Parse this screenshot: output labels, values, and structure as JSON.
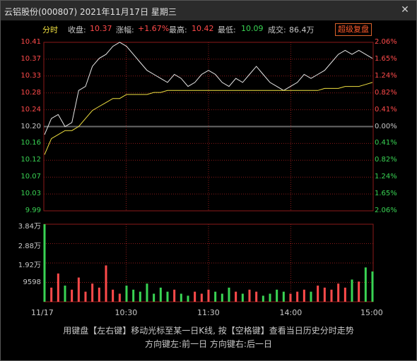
{
  "window": {
    "title": "云铝股份(000807) 2021年11月17日 星期三",
    "close_glyph": "✕"
  },
  "info": {
    "tab": "分时",
    "close_label": "收盘:",
    "close_value": "10.37",
    "change_label": "涨幅:",
    "change_value": "+1.67%",
    "high_label": "最高:",
    "high_value": "10.42",
    "low_label": "最低:",
    "low_value": "10.09",
    "volume_label": "成交:",
    "volume_value": "86.4万",
    "button": "超级复盘"
  },
  "price_axis": {
    "left": [
      "10.41",
      "10.37",
      "10.33",
      "10.28",
      "10.24",
      "10.20",
      "10.16",
      "10.12",
      "10.07",
      "10.03",
      "9.99"
    ],
    "right": [
      "2.06%",
      "1.65%",
      "1.24%",
      "0.82%",
      "0.41%",
      "0.00%",
      "0.41%",
      "0.82%",
      "1.24%",
      "1.65%",
      "2.06%"
    ]
  },
  "volume_axis": {
    "labels": [
      "3.84万",
      "2.88万",
      "1.92万",
      "9598"
    ]
  },
  "time_axis": [
    "11/17",
    "10:30",
    "11:30",
    "14:00",
    "15:00"
  ],
  "footer": {
    "line1": "用键盘【左右键】移动光标至某一日K线, 按【空格键】查看当日历史分时走势",
    "line2": "方向键左:前一日  方向键右:后一日"
  },
  "colors": {
    "up": "#ff4a4a",
    "down": "#39d353",
    "price_line": "#e8e8e8",
    "avg_line": "#f0e040",
    "grid": "#8b1a1a"
  },
  "chart_data": {
    "type": "line",
    "title": "",
    "ylim": [
      9.99,
      10.41
    ],
    "prev_close": 10.2,
    "x_ticks": [
      "09:30",
      "10:30",
      "11:30",
      "14:00",
      "15:00"
    ],
    "series": [
      {
        "x": [
          "09:30",
          "09:35",
          "09:40",
          "09:45",
          "09:50",
          "09:55",
          "10:00",
          "10:05",
          "10:10",
          "10:15",
          "10:20",
          "10:25",
          "10:30",
          "10:35",
          "10:40",
          "10:45",
          "10:50",
          "10:55",
          "11:00",
          "11:05",
          "11:10",
          "11:15",
          "11:20",
          "11:25",
          "11:30",
          "13:05",
          "13:10",
          "13:15",
          "13:20",
          "13:25",
          "13:30",
          "13:35",
          "13:40",
          "13:45",
          "13:50",
          "13:55",
          "14:00",
          "14:05",
          "14:10",
          "14:15",
          "14:20",
          "14:25",
          "14:30",
          "14:35",
          "14:40",
          "14:45",
          "14:50",
          "14:55",
          "15:00"
        ],
        "values": [
          10.18,
          10.22,
          10.23,
          10.2,
          10.21,
          10.29,
          10.3,
          10.35,
          10.37,
          10.38,
          10.4,
          10.41,
          10.4,
          10.38,
          10.36,
          10.34,
          10.33,
          10.32,
          10.31,
          10.33,
          10.32,
          10.3,
          10.31,
          10.33,
          10.34,
          10.33,
          10.31,
          10.3,
          10.32,
          10.31,
          10.33,
          10.35,
          10.33,
          10.31,
          10.3,
          10.29,
          10.3,
          10.31,
          10.33,
          10.32,
          10.33,
          10.34,
          10.36,
          10.38,
          10.39,
          10.38,
          10.39,
          10.38,
          10.37
        ]
      },
      {
        "x": [
          "09:30",
          "09:35",
          "09:40",
          "09:45",
          "09:50",
          "09:55",
          "10:00",
          "10:05",
          "10:10",
          "10:15",
          "10:20",
          "10:25",
          "10:30",
          "10:35",
          "10:40",
          "10:45",
          "10:50",
          "10:55",
          "11:00",
          "11:05",
          "11:10",
          "11:15",
          "11:20",
          "11:25",
          "11:30",
          "13:05",
          "13:10",
          "13:15",
          "13:20",
          "13:25",
          "13:30",
          "13:35",
          "13:40",
          "13:45",
          "13:50",
          "13:55",
          "14:00",
          "14:05",
          "14:10",
          "14:15",
          "14:20",
          "14:25",
          "14:30",
          "14:35",
          "14:40",
          "14:45",
          "14:50",
          "14:55",
          "15:00"
        ],
        "values": [
          10.13,
          10.17,
          10.18,
          10.19,
          10.19,
          10.2,
          10.22,
          10.24,
          10.25,
          10.26,
          10.27,
          10.27,
          10.28,
          10.28,
          10.28,
          10.28,
          10.285,
          10.285,
          10.29,
          10.29,
          10.29,
          10.29,
          10.29,
          10.29,
          10.29,
          10.29,
          10.29,
          10.29,
          10.29,
          10.29,
          10.29,
          10.29,
          10.29,
          10.29,
          10.29,
          10.29,
          10.29,
          10.29,
          10.29,
          10.29,
          10.29,
          10.295,
          10.295,
          10.295,
          10.3,
          10.3,
          10.3,
          10.305,
          10.31
        ]
      }
    ],
    "volume": [
      38400,
      7000,
      14000,
      8000,
      6000,
      12000,
      5000,
      9000,
      7000,
      18000,
      6000,
      4000,
      8000,
      6000,
      5000,
      9000,
      4000,
      7000,
      5000,
      6000,
      4000,
      3000,
      5000,
      4000,
      6000,
      5000,
      4000,
      7000,
      5000,
      4000,
      6000,
      5000,
      3000,
      4000,
      6000,
      5000,
      4000,
      5000,
      6000,
      5000,
      8000,
      7000,
      6000,
      9000,
      7000,
      11000,
      10000,
      17000,
      15000
    ],
    "volume_ylim": [
      0,
      38400
    ]
  }
}
